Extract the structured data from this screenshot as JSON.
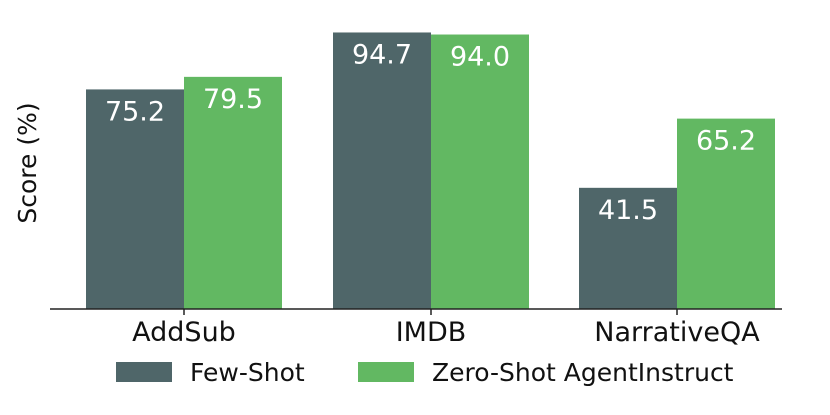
{
  "chart_data": {
    "type": "bar",
    "title": "",
    "xlabel": "",
    "ylabel": "Score (%)",
    "categories": [
      "AddSub",
      "IMDB",
      "NarrativeQA"
    ],
    "series": [
      {
        "name": "Few-Shot",
        "values": [
          75.2,
          94.7,
          41.5
        ],
        "color": "#4f6669"
      },
      {
        "name": "Zero-Shot AgentInstruct",
        "values": [
          79.5,
          94.0,
          65.2
        ],
        "color": "#62b862"
      }
    ],
    "data_labels": [
      [
        "75.2",
        "94.7",
        "41.5"
      ],
      [
        "79.5",
        "94.0",
        "65.2"
      ]
    ],
    "ylim": [
      0,
      100
    ],
    "grid": false,
    "legend_position": "bottom"
  }
}
